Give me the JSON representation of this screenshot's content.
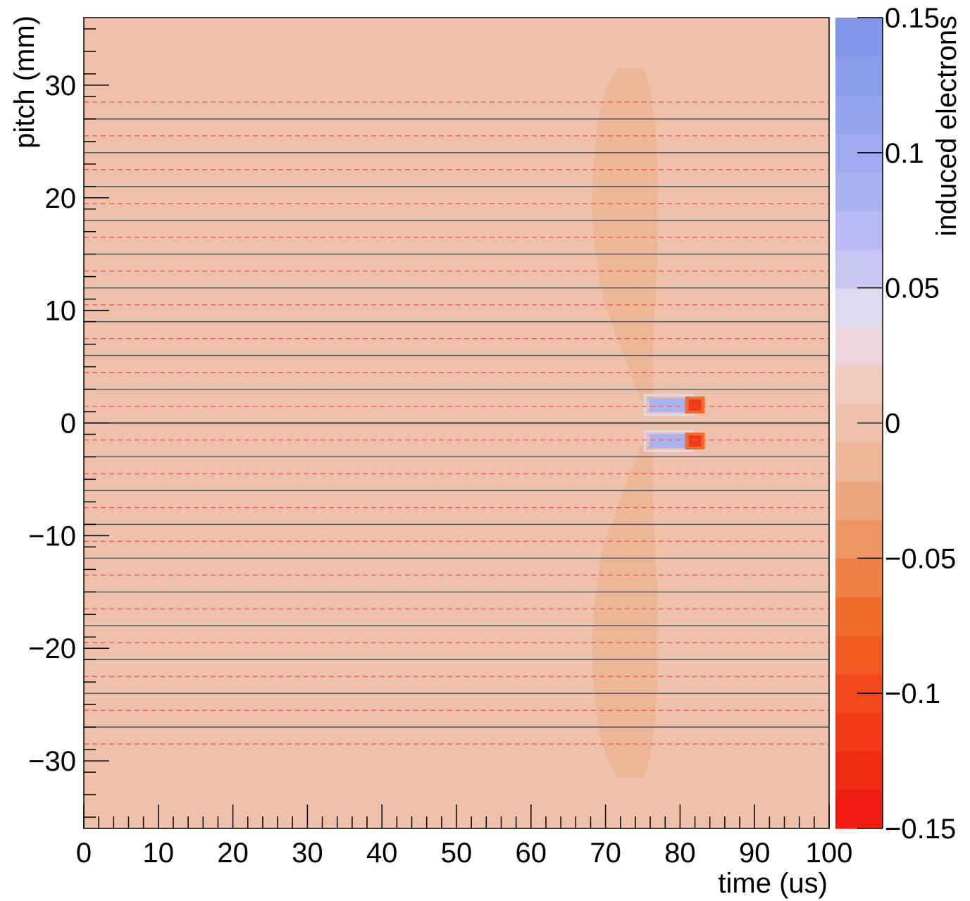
{
  "chart_data": {
    "type": "heatmap",
    "title": "",
    "xlabel": "time (us)",
    "ylabel": "pitch (mm)",
    "zlabel": "induced electrons",
    "xlim": [
      0,
      100
    ],
    "ylim": [
      -36,
      36
    ],
    "zlim": [
      -0.15,
      0.15
    ],
    "x_ticks": [
      0,
      10,
      20,
      30,
      40,
      50,
      60,
      70,
      80,
      90,
      100
    ],
    "x_tick_labels": [
      "0",
      "10",
      "20",
      "30",
      "40",
      "50",
      "60",
      "70",
      "80",
      "90",
      "100"
    ],
    "y_ticks": [
      -30,
      -20,
      -10,
      0,
      10,
      20,
      30
    ],
    "y_tick_labels": [
      "−30",
      "−20",
      "−10",
      "0",
      "10",
      "20",
      "30"
    ],
    "z_ticks": [
      -0.15,
      -0.1,
      -0.05,
      0,
      0.05,
      0.1,
      0.15
    ],
    "z_tick_labels": [
      "−0.15",
      "−0.1",
      "−0.05",
      "0",
      "0.05",
      "0.1",
      "0.15"
    ],
    "background_value": 0.005,
    "colormap": {
      "negative_end": "#ee1a12",
      "zero": "#f0cdc2",
      "positive_end": "#7b95e6",
      "palette": [
        "#ef1b12",
        "#f02a14",
        "#f13a17",
        "#f1491b",
        "#f15c22",
        "#f06e2c",
        "#ef8146",
        "#ee9663",
        "#eda77e",
        "#edb697",
        "#efc1aa",
        "#f0ccbf",
        "#ebd4dc",
        "#dedaf0",
        "#c9c7f2",
        "#b8baf3",
        "#aab3f2",
        "#9faaf0",
        "#94a3ee",
        "#8a9cec",
        "#8296e9"
      ]
    },
    "regions": [
      {
        "name": "upper-lobe",
        "value": -0.01,
        "x_range": [
          68,
          77
        ],
        "y_range": [
          2,
          31.5
        ]
      },
      {
        "name": "lower-lobe",
        "value": -0.01,
        "x_range": [
          68,
          77
        ],
        "y_range": [
          -31.5,
          -2
        ]
      }
    ],
    "hot_spots": [
      {
        "x": 82,
        "y": 1.6,
        "value": -0.12
      },
      {
        "x": 82,
        "y": -1.6,
        "value": -0.12
      }
    ],
    "positive_spots": [
      {
        "x": 78.5,
        "y": 1.6,
        "value": 0.08
      },
      {
        "x": 78.5,
        "y": -1.6,
        "value": 0.08
      }
    ],
    "solid_lines_y": [
      -27,
      -24,
      -21,
      -18,
      -15,
      -12,
      -9,
      -6,
      -3,
      0,
      3,
      6,
      9,
      12,
      15,
      18,
      21,
      24,
      27
    ],
    "dashed_lines_y": [
      -28.5,
      -25.5,
      -22.5,
      -19.5,
      -16.5,
      -13.5,
      -10.5,
      -7.5,
      -4.5,
      -1.5,
      1.5,
      4.5,
      7.5,
      10.5,
      13.5,
      16.5,
      19.5,
      22.5,
      25.5,
      28.5
    ],
    "grid": false,
    "legend": "colorbar-right"
  }
}
